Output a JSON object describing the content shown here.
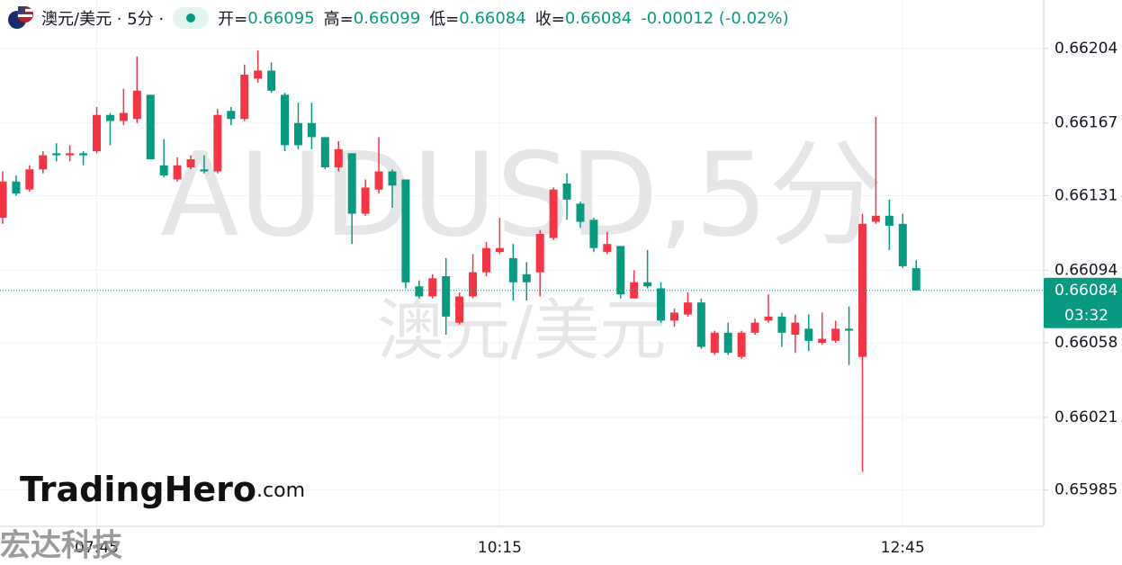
{
  "chart_data": {
    "type": "candlestick",
    "symbol": "澳元/美元 · 5分 ·",
    "open_label": "开=",
    "high_label": "高=",
    "low_label": "低=",
    "close_label": "收=",
    "change": "-0.00012 (-0.02%)",
    "watermark": "AUDUSD,5分",
    "watermark_sub": "澳元/美元",
    "logo": "TradingHero",
    "logo_suffix": ".com",
    "corner_text": "宏达科技",
    "countdown": "03:32",
    "up_color": "#f23645",
    "down_color": "#089981",
    "grid": true,
    "categories": [
      null,
      null,
      null,
      null,
      null,
      null,
      null,
      "07:45",
      null,
      null,
      null,
      null,
      null,
      null,
      null,
      null,
      null,
      null,
      null,
      null,
      null,
      null,
      null,
      null,
      null,
      null,
      null,
      null,
      null,
      null,
      null,
      null,
      null,
      null,
      null,
      null,
      null,
      "10:15",
      null,
      null,
      null,
      null,
      null,
      null,
      null,
      null,
      null,
      null,
      null,
      null,
      null,
      null,
      null,
      null,
      null,
      null,
      null,
      null,
      null,
      null,
      null,
      null,
      null,
      null,
      null,
      null,
      null,
      "12:45",
      null
    ],
    "ylim": [
      0.65967,
      0.66228
    ],
    "yticks": [
      0.65985,
      0.66021,
      0.66058,
      0.66094,
      0.66131,
      0.66167,
      0.66204
    ],
    "series": [
      {
        "open": [
          0.6612,
          0.66138,
          0.66134,
          0.66144,
          0.66152,
          0.66151,
          0.66152,
          0.66153,
          0.66171,
          0.66168,
          0.66169,
          0.66181,
          0.66146,
          0.66139,
          0.66145,
          0.66144,
          0.66143,
          0.66173,
          0.66169,
          0.66189,
          0.66193,
          0.66181,
          0.66167,
          0.66167,
          0.6616,
          0.66145,
          0.66152,
          0.66122,
          0.66134,
          0.66143,
          0.66139,
          0.66086,
          0.66081,
          0.66091,
          0.66068,
          0.66081,
          0.66093,
          0.66103,
          0.661,
          0.66092,
          0.66093,
          0.6611,
          0.66137,
          0.66127,
          0.66119,
          0.66103,
          0.66106,
          0.6608,
          0.66088,
          0.66085,
          0.66069,
          0.66072,
          0.66078,
          0.66053,
          0.66063,
          0.66051,
          0.66063,
          0.66069,
          0.66071,
          0.66062,
          0.66065,
          0.66058,
          0.66059,
          0.66065,
          0.66051,
          0.66118,
          0.66121,
          0.66117,
          0.66095
        ],
        "high": [
          0.66143,
          0.66141,
          0.66146,
          0.66153,
          0.66157,
          0.66156,
          0.66153,
          0.66175,
          0.66172,
          0.66184,
          0.662,
          0.66181,
          0.66159,
          0.6615,
          0.66151,
          0.66151,
          0.66174,
          0.66175,
          0.66196,
          0.66203,
          0.66197,
          0.66182,
          0.66177,
          0.66177,
          0.6616,
          0.66158,
          0.66152,
          0.66139,
          0.6616,
          0.66144,
          0.66139,
          0.66089,
          0.66092,
          0.661,
          0.66083,
          0.66102,
          0.66108,
          0.6612,
          0.66107,
          0.66098,
          0.66114,
          0.66135,
          0.66142,
          0.66128,
          0.6612,
          0.66113,
          0.66106,
          0.66094,
          0.66104,
          0.66088,
          0.66075,
          0.66083,
          0.6608,
          0.66064,
          0.66068,
          0.66064,
          0.6607,
          0.66082,
          0.66073,
          0.66072,
          0.66072,
          0.66073,
          0.66069,
          0.66076,
          0.66122,
          0.6617,
          0.66129,
          0.66122,
          0.66099
        ],
        "low": [
          0.66117,
          0.66131,
          0.66133,
          0.66142,
          0.66148,
          0.66148,
          0.66146,
          0.66152,
          0.66156,
          0.66166,
          0.66167,
          0.66149,
          0.6614,
          0.66138,
          0.66144,
          0.66142,
          0.66142,
          0.66166,
          0.66168,
          0.66187,
          0.66182,
          0.66153,
          0.66154,
          0.66154,
          0.66144,
          0.66143,
          0.66107,
          0.66121,
          0.66132,
          0.66125,
          0.66085,
          0.6608,
          0.6608,
          0.66062,
          0.66067,
          0.6608,
          0.66091,
          0.66102,
          0.66079,
          0.66079,
          0.66081,
          0.66109,
          0.66119,
          0.66115,
          0.66103,
          0.66102,
          0.6608,
          0.6608,
          0.66085,
          0.66068,
          0.66066,
          0.66071,
          0.66055,
          0.66052,
          0.66052,
          0.6605,
          0.66062,
          0.66068,
          0.66056,
          0.66053,
          0.66054,
          0.66057,
          0.66058,
          0.66047,
          0.65994,
          0.66117,
          0.66104,
          0.66095,
          0.66084
        ],
        "close": [
          0.66138,
          0.66132,
          0.66144,
          0.66151,
          0.66151,
          0.66152,
          0.66151,
          0.66171,
          0.66168,
          0.66172,
          0.66183,
          0.66149,
          0.66141,
          0.66146,
          0.66149,
          0.66143,
          0.66171,
          0.66169,
          0.66191,
          0.66193,
          0.66183,
          0.66156,
          0.66156,
          0.6616,
          0.66145,
          0.66154,
          0.66122,
          0.66135,
          0.66143,
          0.66136,
          0.66088,
          0.66081,
          0.6609,
          0.66071,
          0.66081,
          0.66093,
          0.66105,
          0.66105,
          0.66088,
          0.66088,
          0.66112,
          0.66134,
          0.66129,
          0.66118,
          0.66105,
          0.66107,
          0.66082,
          0.66088,
          0.66086,
          0.66069,
          0.66073,
          0.66078,
          0.66056,
          0.66063,
          0.66053,
          0.66063,
          0.66068,
          0.66071,
          0.66063,
          0.66068,
          0.66059,
          0.6606,
          0.66065,
          0.66064,
          0.66117,
          0.66121,
          0.66116,
          0.66096,
          0.66084
        ]
      }
    ]
  }
}
